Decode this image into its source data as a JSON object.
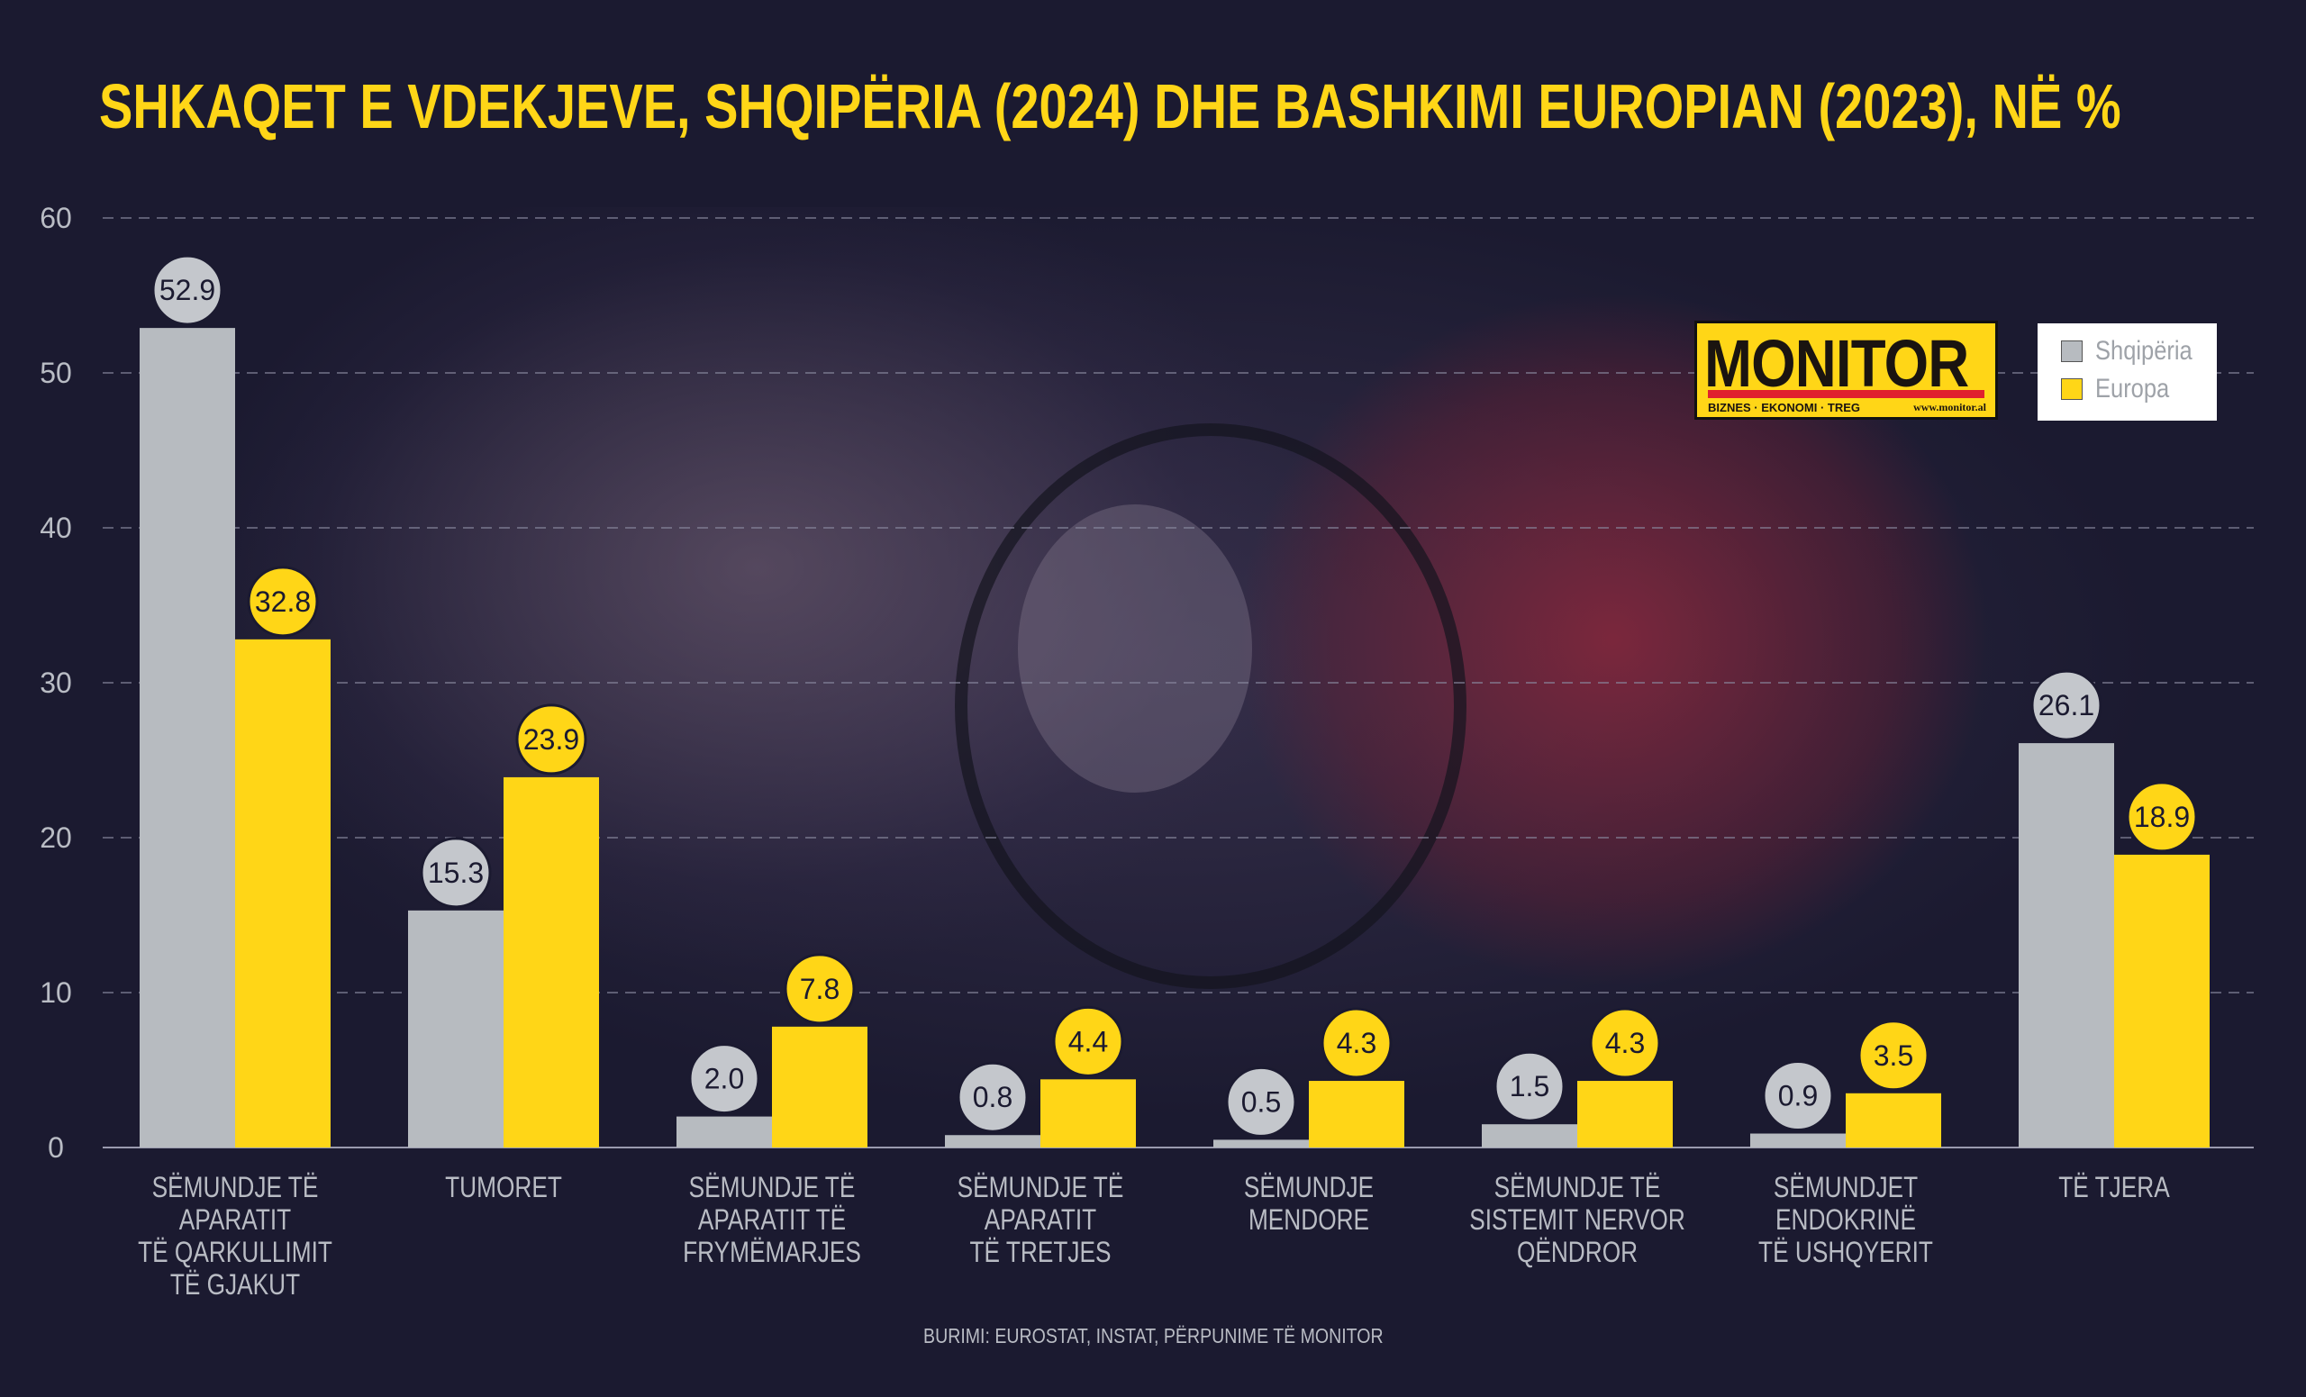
{
  "chart_data": {
    "type": "bar",
    "title": "SHKAQET E VDEKJEVE, SHQIPËRIA (2024) DHE BASHKIMI EUROPIAN (2023), NË %",
    "categories": [
      [
        "SËMUNDJE TË APARATIT",
        "TË QARKULLIMIT",
        "TË GJAKUT"
      ],
      [
        "TUMORET"
      ],
      [
        "SËMUNDJE TË",
        "APARATIT TË",
        "FRYMËMARJES"
      ],
      [
        "SËMUNDJE TË",
        "APARATIT",
        "TË TRETJES"
      ],
      [
        "SËMUNDJE",
        "MENDORE"
      ],
      [
        "SËMUNDJE TË",
        "SISTEMIT NERVOR",
        "QËNDROR"
      ],
      [
        "SËMUNDJET",
        "ENDOKRINË",
        "TË USHQYERIT"
      ],
      [
        "TË TJERA"
      ]
    ],
    "series": [
      {
        "name": "Shqipëria",
        "color": "#b7bbc0",
        "values": [
          52.9,
          15.3,
          2.0,
          0.8,
          0.5,
          1.5,
          0.9,
          26.1
        ]
      },
      {
        "name": "Europa",
        "color": "#ffd617",
        "values": [
          32.8,
          23.9,
          7.8,
          4.4,
          4.3,
          4.3,
          3.5,
          18.9
        ]
      }
    ],
    "ylim": [
      0,
      60
    ],
    "yticks": [
      0,
      10,
      20,
      30,
      40,
      50,
      60
    ],
    "grid": true,
    "legend_position": "top-right",
    "source": "BURIMI: EUROSTAT, INSTAT, PËRPUNIME TË MONITOR"
  },
  "logo": {
    "name": "MONITOR",
    "tagline": "BIZNES · EKONOMI · TREG",
    "url": "www.monitor.al"
  }
}
